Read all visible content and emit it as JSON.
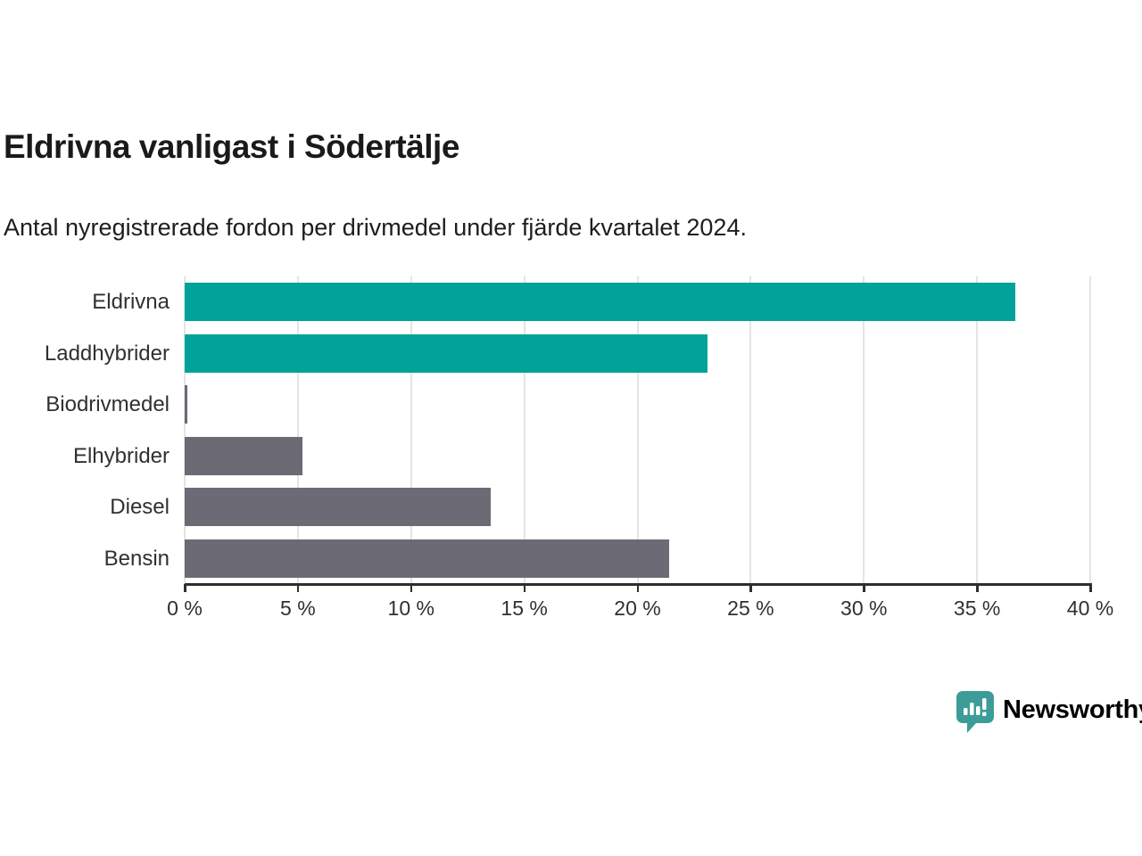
{
  "header": {
    "title": "Eldrivna vanligast i Södertälje",
    "subtitle": "Antal nyregistrerade fordon per drivmedel under fjärde kvartalet 2024."
  },
  "chart_data": {
    "type": "bar",
    "orientation": "horizontal",
    "title": "Eldrivna vanligast i Södertälje",
    "subtitle": "Antal nyregistrerade fordon per drivmedel under fjärde kvartalet 2024.",
    "categories": [
      "Eldrivna",
      "Laddhybrider",
      "Biodrivmedel",
      "Elhybrider",
      "Diesel",
      "Bensin"
    ],
    "values": [
      36.7,
      23.1,
      0.1,
      5.2,
      13.5,
      21.4
    ],
    "unit": "%",
    "bar_colors": [
      "#00A299",
      "#00A299",
      "#6C6A75",
      "#6C6A75",
      "#6C6A75",
      "#6C6A75"
    ],
    "xlim": [
      0,
      40
    ],
    "x_ticks": [
      0,
      5,
      10,
      15,
      20,
      25,
      30,
      35,
      40
    ],
    "x_tick_labels": [
      "0 %",
      "5 %",
      "10 %",
      "15 %",
      "20 %",
      "25 %",
      "30 %",
      "35 %",
      "40 %"
    ],
    "grid": "vertical",
    "legend": "none",
    "xlabel": "",
    "ylabel": ""
  },
  "footer": {
    "logo_text": "Newsworthy"
  },
  "colors": {
    "accent_teal": "#00A299",
    "bar_gray": "#6C6A75",
    "logo_teal": "#3E9C98",
    "axis": "#2E2E2E",
    "grid": "#E4E4E4",
    "text": "#303030",
    "title_text": "#1A1A1A"
  }
}
